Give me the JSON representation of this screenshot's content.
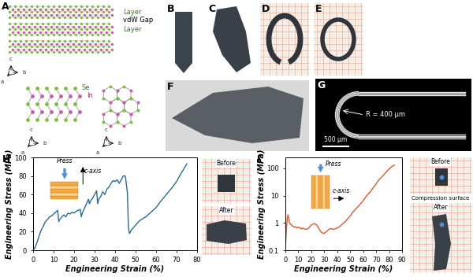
{
  "figure": {
    "panel_labels": [
      "A",
      "B",
      "C",
      "D",
      "E",
      "F",
      "G"
    ],
    "structure": {
      "layer_labels": [
        "Layer",
        "vdW Gap",
        "Layer"
      ],
      "atom_labels": [
        "Se",
        "In"
      ],
      "axis_labels": [
        "a",
        "b",
        "c"
      ]
    },
    "sem": {
      "radius_label": "R = 400 μm",
      "scale_bar": "500 μm"
    }
  },
  "chart_data": [
    {
      "type": "line",
      "title": "H",
      "x_label": "Engineering Strain (%)",
      "y_label": "Engineering Stress (MPa)",
      "color": "#2b6a96",
      "x": [
        0,
        1,
        2,
        3,
        4,
        5,
        6,
        7,
        8,
        9,
        10,
        11,
        12,
        12.5,
        13,
        14,
        15,
        16,
        17,
        18,
        19,
        20,
        21,
        22,
        23,
        23.5,
        24,
        25,
        26,
        27,
        27.5,
        28,
        29,
        30,
        31,
        31.5,
        32,
        33,
        34,
        35,
        36,
        37,
        38,
        39,
        40,
        41,
        42,
        43,
        44,
        45,
        46,
        46.5,
        47,
        48,
        50,
        52,
        55,
        58,
        60,
        62,
        65,
        68,
        70,
        72,
        75
      ],
      "values": [
        0,
        3,
        9,
        16,
        22,
        26,
        31,
        33,
        36,
        37,
        39,
        41,
        43,
        31,
        33,
        36,
        38,
        36,
        40,
        39,
        41,
        40,
        42,
        43,
        44,
        36,
        40,
        45,
        50,
        55,
        50,
        53,
        56,
        60,
        64,
        50,
        55,
        58,
        63,
        60,
        66,
        68,
        72,
        75,
        74,
        76,
        72,
        76,
        80,
        80,
        62,
        25,
        18,
        22,
        27,
        32,
        36,
        42,
        46,
        52,
        60,
        68,
        74,
        82,
        93
      ],
      "xlim": [
        0,
        80
      ],
      "ylim": [
        0,
        100
      ],
      "xticks": [
        0,
        10,
        20,
        30,
        40,
        50,
        60,
        70,
        80
      ],
      "yticks": [
        0,
        20,
        40,
        60,
        80,
        100
      ],
      "annotations": [
        "Press",
        "c-axis",
        "Before",
        "After"
      ]
    },
    {
      "type": "line",
      "title": "I",
      "x_label": "Engineering Strain (%)",
      "y_label": "Engineering Stress (MPa)",
      "color": "#e4572e",
      "log": "y",
      "x": [
        0,
        0.5,
        1,
        1.5,
        2,
        2.5,
        3,
        4,
        5,
        6,
        7,
        8,
        9,
        10,
        11,
        12,
        13,
        14,
        15,
        16,
        17,
        18,
        19,
        20,
        21,
        22,
        23,
        24,
        25,
        26,
        27,
        28,
        29,
        30,
        31,
        32,
        33,
        34,
        35,
        36,
        37,
        38,
        40,
        42,
        44,
        46,
        48,
        50,
        52,
        55,
        58,
        60,
        62,
        65,
        68,
        70,
        72,
        75,
        78,
        80,
        82,
        84
      ],
      "values": [
        0.12,
        0.3,
        0.8,
        1.5,
        2.0,
        1.6,
        1.1,
        0.9,
        0.8,
        0.75,
        0.7,
        0.72,
        0.65,
        0.7,
        0.68,
        0.6,
        0.65,
        0.62,
        0.6,
        0.58,
        0.6,
        0.65,
        0.75,
        0.85,
        0.9,
        0.95,
        0.92,
        0.85,
        0.75,
        0.6,
        0.5,
        0.45,
        0.42,
        0.42,
        0.45,
        0.5,
        0.55,
        0.6,
        0.62,
        0.6,
        0.58,
        0.6,
        0.65,
        0.75,
        0.9,
        1.1,
        1.4,
        1.8,
        2.5,
        3.5,
        5,
        6.5,
        9,
        13,
        20,
        27,
        37,
        52,
        75,
        95,
        115,
        130
      ],
      "xlim": [
        0,
        90
      ],
      "ylim": [
        0.1,
        250
      ],
      "xticks": [
        0,
        10,
        20,
        30,
        40,
        50,
        60,
        70,
        80,
        90
      ],
      "yticks": [
        0.1,
        1,
        10,
        100
      ],
      "annotations": [
        "Press",
        "c-axis",
        "Before",
        "Compression surface",
        "After"
      ]
    }
  ]
}
